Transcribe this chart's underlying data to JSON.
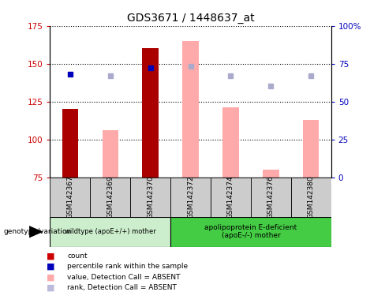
{
  "title": "GDS3671 / 1448637_at",
  "samples": [
    "GSM142367",
    "GSM142369",
    "GSM142370",
    "GSM142372",
    "GSM142374",
    "GSM142376",
    "GSM142380"
  ],
  "red_bars": [
    120,
    null,
    160,
    null,
    null,
    null,
    null
  ],
  "pink_bars": [
    null,
    106,
    null,
    165,
    121,
    80,
    113
  ],
  "blue_squares": [
    143,
    null,
    147,
    null,
    null,
    null,
    null
  ],
  "lavender_squares": [
    null,
    142,
    null,
    148,
    142,
    135,
    142
  ],
  "ylim_left": [
    75,
    175
  ],
  "ylim_right": [
    0,
    100
  ],
  "yticks_left": [
    75,
    100,
    125,
    150,
    175
  ],
  "yticks_right": [
    0,
    25,
    50,
    75,
    100
  ],
  "ytick_labels_right": [
    "0",
    "25",
    "50",
    "75",
    "100%"
  ],
  "group1_label": "wildtype (apoE+/+) mother",
  "group2_label": "apolipoprotein E-deficient\n(apoE-/-) mother",
  "group1_indices": [
    0,
    1,
    2
  ],
  "group2_indices": [
    3,
    4,
    5,
    6
  ],
  "legend_labels": [
    "count",
    "percentile rank within the sample",
    "value, Detection Call = ABSENT",
    "rank, Detection Call = ABSENT"
  ],
  "legend_colors": [
    "#cc0000",
    "#0000bb",
    "#ffaaaa",
    "#bbbbdd"
  ],
  "bar_width": 0.4,
  "plot_bg": "#ffffff",
  "tick_color_left": "#cc0000",
  "tick_color_right": "#0000bb",
  "group1_bg": "#cceecc",
  "group2_bg": "#44cc44",
  "sample_bg": "#cccccc",
  "red_bar_color": "#aa0000",
  "pink_bar_color": "#ffaaaa",
  "blue_sq_color": "#0000bb",
  "lav_sq_color": "#aaaacc"
}
